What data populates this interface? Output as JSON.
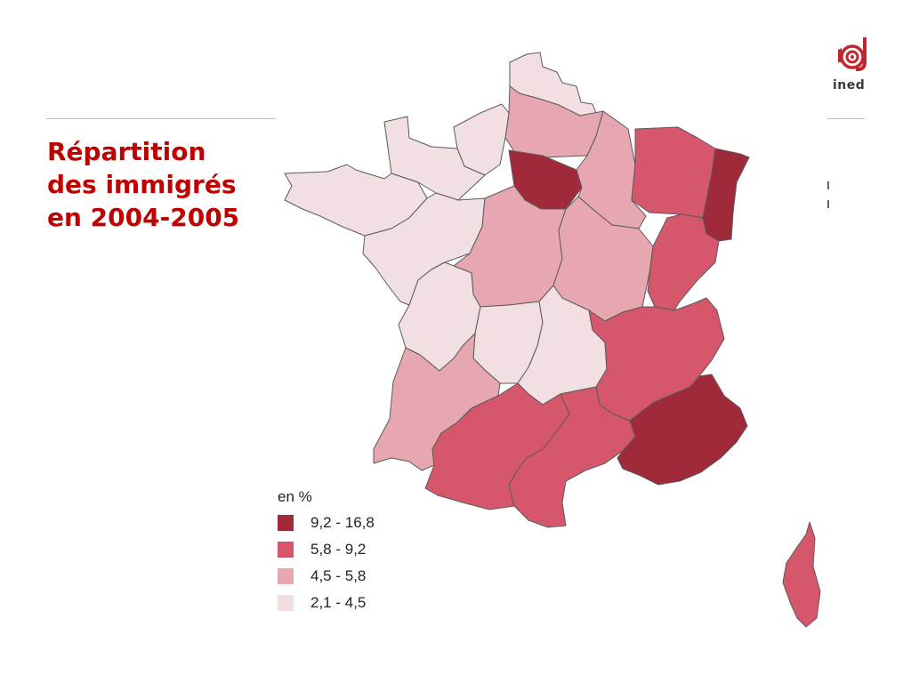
{
  "slide": {
    "title_lines": [
      "Répartition",
      "des immigrés",
      "en 2004-2005"
    ]
  },
  "logo": {
    "text": "ined",
    "color": "#c0272d"
  },
  "map": {
    "legend_heading": "en %",
    "classes": [
      {
        "range": "9,2 - 16,8",
        "color": "#a12a3a"
      },
      {
        "range": "5,8 - 9,2",
        "color": "#d6576b"
      },
      {
        "range": "4,5 - 5,8",
        "color": "#e6a7b0"
      },
      {
        "range": "2,1 - 4,5",
        "color": "#f2dfe1"
      }
    ],
    "regions": [
      {
        "id": "nord-pas-de-calais",
        "class": 3
      },
      {
        "id": "picardie",
        "class": 2
      },
      {
        "id": "haute-normandie",
        "class": 3
      },
      {
        "id": "basse-normandie",
        "class": 3
      },
      {
        "id": "ile-de-france",
        "class": 0
      },
      {
        "id": "champagne-ardenne",
        "class": 2
      },
      {
        "id": "lorraine",
        "class": 1
      },
      {
        "id": "alsace",
        "class": 0
      },
      {
        "id": "bretagne",
        "class": 3
      },
      {
        "id": "pays-de-la-loire",
        "class": 3
      },
      {
        "id": "centre",
        "class": 2
      },
      {
        "id": "bourgogne",
        "class": 2
      },
      {
        "id": "franche-comte",
        "class": 1
      },
      {
        "id": "poitou-charentes",
        "class": 3
      },
      {
        "id": "limousin",
        "class": 3
      },
      {
        "id": "auvergne",
        "class": 3
      },
      {
        "id": "rhone-alpes",
        "class": 1
      },
      {
        "id": "aquitaine",
        "class": 2
      },
      {
        "id": "midi-pyrenees",
        "class": 1
      },
      {
        "id": "languedoc-roussillon",
        "class": 1
      },
      {
        "id": "provence-alpes-cote-d-azur",
        "class": 0
      },
      {
        "id": "corse",
        "class": 1
      }
    ]
  }
}
